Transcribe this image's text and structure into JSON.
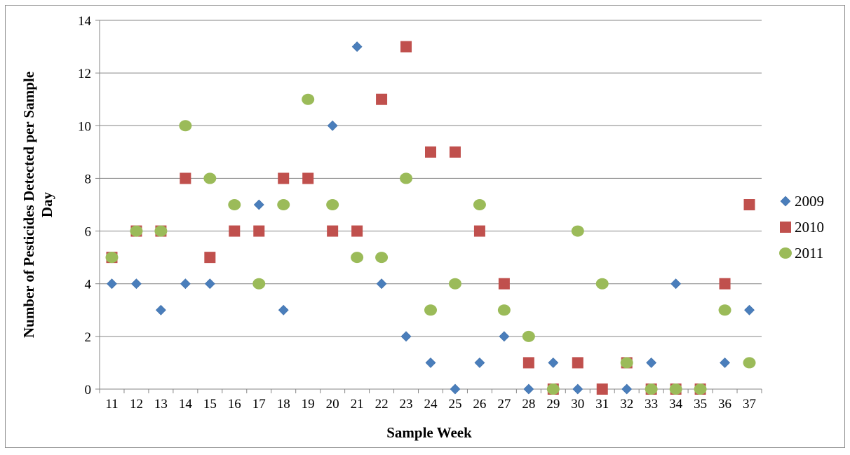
{
  "chart_data": {
    "type": "scatter",
    "title": "",
    "xlabel": "Sample Week",
    "ylabel": "Number of Pesticides Detected per Sample Day",
    "ylim": [
      0,
      14
    ],
    "y_ticks": [
      0,
      2,
      4,
      6,
      8,
      10,
      12,
      14
    ],
    "categories": [
      "11",
      "12",
      "13",
      "14",
      "15",
      "16",
      "17",
      "18",
      "19",
      "20",
      "21",
      "22",
      "23",
      "24",
      "25",
      "26",
      "27",
      "28",
      "29",
      "30",
      "31",
      "32",
      "33",
      "34",
      "35",
      "36",
      "37"
    ],
    "grid": "horizontal",
    "legend_position": "right",
    "series": [
      {
        "name": "2009",
        "marker": "diamond",
        "color": "#4a7ebb",
        "values": [
          4,
          4,
          3,
          4,
          4,
          null,
          7,
          3,
          null,
          10,
          13,
          4,
          2,
          1,
          0,
          1,
          2,
          0,
          1,
          0,
          null,
          0,
          1,
          4,
          null,
          1,
          3
        ]
      },
      {
        "name": "2010",
        "marker": "square",
        "color": "#c0504d",
        "values": [
          5,
          6,
          6,
          8,
          5,
          6,
          6,
          8,
          8,
          6,
          6,
          11,
          13,
          9,
          9,
          6,
          4,
          1,
          0,
          1,
          0,
          1,
          0,
          0,
          0,
          4,
          7
        ]
      },
      {
        "name": "2011",
        "marker": "circle",
        "color": "#9bbb59",
        "values": [
          5,
          6,
          6,
          10,
          8,
          7,
          4,
          7,
          11,
          7,
          5,
          5,
          8,
          3,
          4,
          7,
          3,
          2,
          0,
          6,
          4,
          1,
          0,
          0,
          0,
          3,
          1
        ]
      }
    ]
  }
}
